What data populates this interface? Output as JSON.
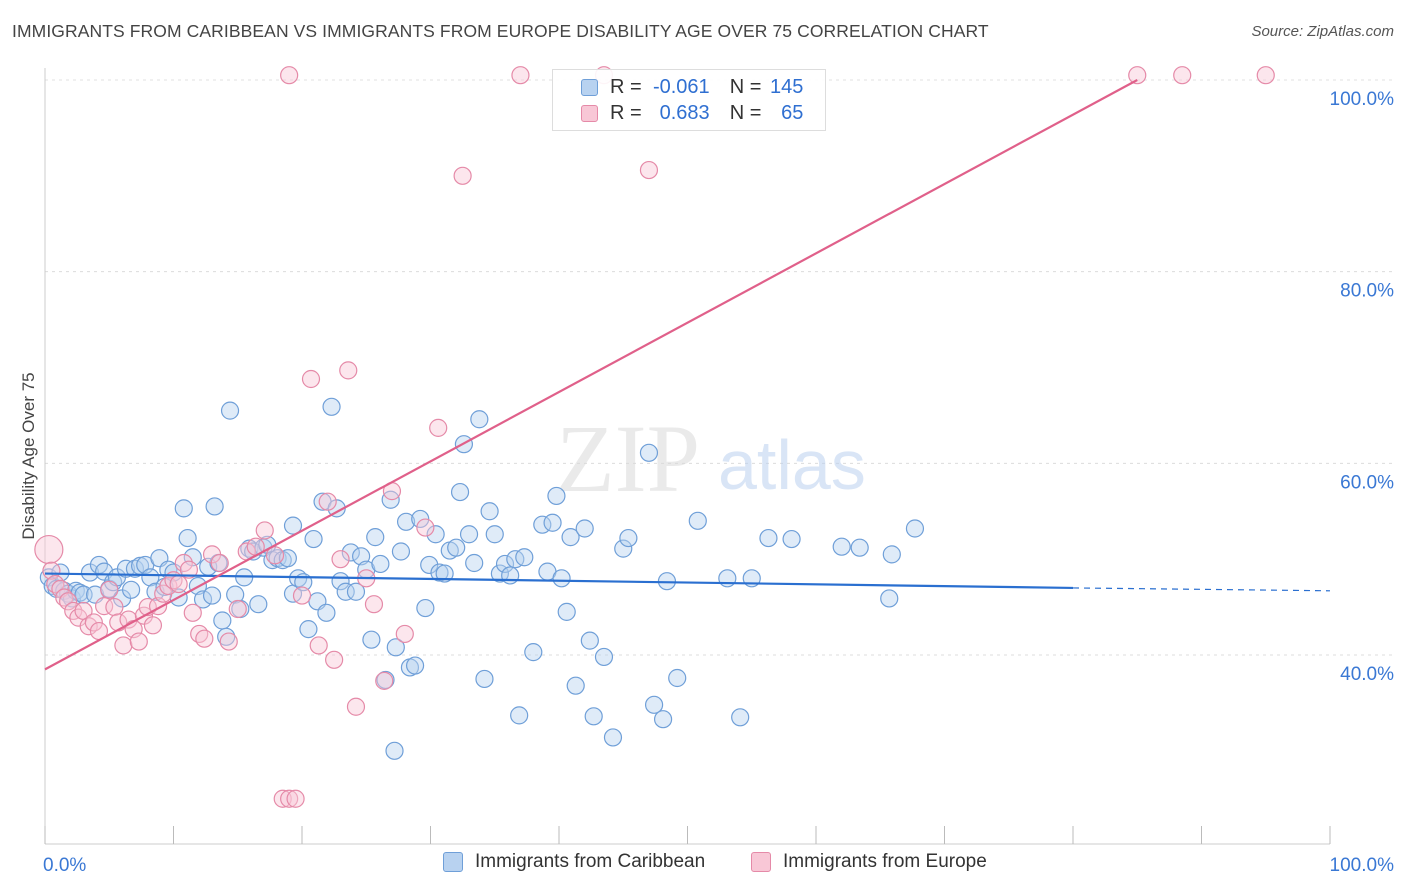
{
  "header": {
    "title": "IMMIGRANTS FROM CARIBBEAN VS IMMIGRANTS FROM EUROPE DISABILITY AGE OVER 75 CORRELATION CHART",
    "source": "Source: ZipAtlas.com"
  },
  "watermark": {
    "zip": "ZIP",
    "atlas": "atlas"
  },
  "legend": {
    "rows": [
      {
        "r_label": "R =",
        "r_value": "-0.061",
        "n_label": "N =",
        "n_value": "145"
      },
      {
        "r_label": "R =",
        "r_value": "0.683",
        "n_label": "N =",
        "n_value": "65"
      }
    ]
  },
  "bottom_legend": {
    "caribbean": "Immigrants from Caribbean",
    "europe": "Immigrants from Europe"
  },
  "colors": {
    "blue_fill": "#b8d2f0",
    "blue_stroke": "#6f9fd8",
    "blue_line": "#2a6fd0",
    "pink_fill": "#f8c7d6",
    "pink_stroke": "#e58aa8",
    "pink_line": "#e0608a",
    "tick_label": "#3a78d4"
  },
  "chart_data": {
    "type": "scatter",
    "title": "IMMIGRANTS FROM CARIBBEAN VS IMMIGRANTS FROM EUROPE DISABILITY AGE OVER 75 CORRELATION CHART",
    "xlabel": "",
    "ylabel": "Disability Age Over 75",
    "xlim": [
      0,
      100
    ],
    "ylim": [
      18,
      102
    ],
    "x_tick_labels": [
      "0.0%",
      "100.0%"
    ],
    "y_ticks": [
      40,
      60,
      80,
      100
    ],
    "y_tick_labels": [
      "40.0%",
      "60.0%",
      "80.0%",
      "100.0%"
    ],
    "grid": "horizontal dashed",
    "legend_position": "top-center",
    "series": [
      {
        "name": "Immigrants from Caribbean",
        "color": "#6f9fd8",
        "trend": {
          "x": [
            0,
            80
          ],
          "y": [
            48.5,
            47.0
          ],
          "dashed_to": [
            100,
            46.7
          ]
        },
        "points": [
          [
            0.3,
            48.1
          ],
          [
            0.6,
            47.2
          ],
          [
            0.9,
            46.9
          ],
          [
            1.2,
            48.6
          ],
          [
            1.5,
            46.7
          ],
          [
            1.8,
            46.4
          ],
          [
            2.1,
            45.9
          ],
          [
            2.4,
            46.7
          ],
          [
            2.7,
            46.5
          ],
          [
            3.0,
            46.3
          ],
          [
            3.5,
            48.6
          ],
          [
            3.9,
            46.3
          ],
          [
            4.2,
            49.4
          ],
          [
            4.6,
            48.7
          ],
          [
            5.0,
            46.9
          ],
          [
            5.3,
            47.6
          ],
          [
            5.6,
            48.1
          ],
          [
            6.0,
            45.9
          ],
          [
            6.3,
            49.0
          ],
          [
            6.7,
            46.8
          ],
          [
            7.0,
            49.0
          ],
          [
            7.4,
            49.3
          ],
          [
            7.8,
            49.4
          ],
          [
            8.2,
            48.1
          ],
          [
            8.6,
            46.6
          ],
          [
            8.9,
            50.1
          ],
          [
            9.3,
            47.1
          ],
          [
            9.6,
            48.9
          ],
          [
            10.0,
            48.6
          ],
          [
            10.4,
            46.0
          ],
          [
            10.8,
            55.3
          ],
          [
            11.1,
            52.2
          ],
          [
            11.5,
            50.2
          ],
          [
            11.9,
            47.2
          ],
          [
            12.3,
            45.8
          ],
          [
            12.7,
            49.2
          ],
          [
            13.0,
            46.2
          ],
          [
            13.2,
            55.5
          ],
          [
            13.5,
            49.6
          ],
          [
            13.8,
            43.6
          ],
          [
            14.1,
            41.9
          ],
          [
            14.4,
            65.5
          ],
          [
            14.8,
            46.3
          ],
          [
            15.2,
            44.8
          ],
          [
            15.5,
            48.1
          ],
          [
            15.9,
            51.1
          ],
          [
            16.2,
            50.8
          ],
          [
            16.6,
            45.3
          ],
          [
            17.0,
            51.2
          ],
          [
            17.3,
            51.5
          ],
          [
            17.7,
            49.9
          ],
          [
            18.1,
            50.1
          ],
          [
            18.5,
            49.9
          ],
          [
            18.9,
            50.1
          ],
          [
            19.3,
            46.4
          ],
          [
            19.3,
            53.5
          ],
          [
            19.7,
            48.0
          ],
          [
            20.1,
            47.6
          ],
          [
            20.5,
            42.7
          ],
          [
            20.9,
            52.1
          ],
          [
            21.2,
            45.6
          ],
          [
            21.6,
            56.0
          ],
          [
            21.9,
            44.4
          ],
          [
            22.3,
            65.9
          ],
          [
            22.7,
            55.3
          ],
          [
            23.0,
            47.7
          ],
          [
            23.4,
            46.6
          ],
          [
            23.8,
            50.7
          ],
          [
            24.2,
            46.6
          ],
          [
            24.6,
            50.3
          ],
          [
            25.0,
            48.9
          ],
          [
            25.4,
            41.6
          ],
          [
            25.7,
            52.3
          ],
          [
            26.1,
            49.5
          ],
          [
            26.5,
            37.4
          ],
          [
            26.9,
            56.2
          ],
          [
            27.3,
            40.8
          ],
          [
            27.2,
            30.0
          ],
          [
            27.7,
            50.8
          ],
          [
            28.1,
            53.9
          ],
          [
            28.4,
            38.7
          ],
          [
            28.8,
            38.9
          ],
          [
            29.2,
            54.2
          ],
          [
            29.6,
            44.9
          ],
          [
            29.9,
            49.4
          ],
          [
            30.4,
            52.6
          ],
          [
            30.7,
            48.6
          ],
          [
            31.1,
            48.5
          ],
          [
            31.5,
            50.9
          ],
          [
            32.0,
            51.2
          ],
          [
            32.3,
            57.0
          ],
          [
            32.6,
            62.0
          ],
          [
            33.0,
            52.6
          ],
          [
            33.4,
            49.6
          ],
          [
            33.8,
            64.6
          ],
          [
            34.2,
            37.5
          ],
          [
            34.6,
            55.0
          ],
          [
            35.0,
            52.6
          ],
          [
            35.4,
            48.5
          ],
          [
            35.8,
            49.5
          ],
          [
            36.2,
            48.3
          ],
          [
            36.6,
            50.0
          ],
          [
            36.9,
            33.7
          ],
          [
            37.3,
            50.2
          ],
          [
            38.0,
            40.3
          ],
          [
            38.7,
            53.6
          ],
          [
            39.1,
            48.7
          ],
          [
            39.5,
            53.8
          ],
          [
            39.8,
            56.6
          ],
          [
            40.2,
            48.0
          ],
          [
            40.6,
            44.5
          ],
          [
            40.9,
            52.3
          ],
          [
            41.3,
            36.8
          ],
          [
            42.0,
            53.2
          ],
          [
            42.4,
            41.5
          ],
          [
            42.7,
            33.6
          ],
          [
            43.5,
            39.8
          ],
          [
            44.2,
            31.4
          ],
          [
            45.0,
            51.1
          ],
          [
            45.4,
            52.2
          ],
          [
            47.4,
            34.8
          ],
          [
            47.0,
            61.1
          ],
          [
            48.1,
            33.3
          ],
          [
            48.4,
            47.7
          ],
          [
            49.2,
            37.6
          ],
          [
            50.8,
            54.0
          ],
          [
            53.1,
            48.0
          ],
          [
            54.1,
            33.5
          ],
          [
            55.0,
            48.0
          ],
          [
            56.3,
            52.2
          ],
          [
            58.1,
            52.1
          ],
          [
            62.0,
            51.3
          ],
          [
            63.4,
            51.2
          ],
          [
            65.7,
            45.9
          ],
          [
            65.9,
            50.5
          ],
          [
            67.7,
            53.2
          ]
        ]
      },
      {
        "name": "Immigrants from Europe",
        "color": "#e58aa8",
        "trend": {
          "x": [
            0,
            85
          ],
          "y": [
            38.5,
            100.0
          ]
        },
        "points": [
          [
            0.3,
            51.0
          ],
          [
            0.5,
            48.8
          ],
          [
            0.8,
            47.4
          ],
          [
            1.2,
            46.9
          ],
          [
            1.5,
            46.0
          ],
          [
            1.8,
            45.6
          ],
          [
            2.2,
            44.6
          ],
          [
            2.6,
            43.9
          ],
          [
            3.0,
            44.6
          ],
          [
            3.4,
            43.0
          ],
          [
            3.8,
            43.4
          ],
          [
            4.2,
            42.5
          ],
          [
            4.6,
            45.1
          ],
          [
            5.0,
            46.8
          ],
          [
            5.4,
            45.0
          ],
          [
            5.7,
            43.4
          ],
          [
            6.1,
            41.0
          ],
          [
            6.5,
            43.7
          ],
          [
            6.9,
            42.7
          ],
          [
            7.3,
            41.4
          ],
          [
            7.7,
            44.1
          ],
          [
            8.0,
            45.0
          ],
          [
            8.4,
            43.1
          ],
          [
            8.8,
            45.1
          ],
          [
            9.2,
            46.4
          ],
          [
            9.6,
            47.2
          ],
          [
            10.0,
            47.8
          ],
          [
            10.4,
            47.4
          ],
          [
            10.8,
            49.6
          ],
          [
            11.2,
            48.9
          ],
          [
            11.5,
            44.4
          ],
          [
            12.0,
            42.2
          ],
          [
            12.4,
            41.7
          ],
          [
            13.0,
            50.5
          ],
          [
            13.6,
            49.6
          ],
          [
            14.3,
            41.4
          ],
          [
            15.0,
            44.8
          ],
          [
            15.7,
            50.8
          ],
          [
            16.4,
            51.3
          ],
          [
            17.1,
            53.0
          ],
          [
            17.9,
            50.4
          ],
          [
            18.5,
            25.0
          ],
          [
            19.0,
            25.0
          ],
          [
            19.5,
            25.0
          ],
          [
            20.0,
            46.2
          ],
          [
            20.7,
            68.8
          ],
          [
            21.3,
            41.0
          ],
          [
            22.0,
            56.0
          ],
          [
            22.5,
            39.5
          ],
          [
            23.0,
            50.0
          ],
          [
            23.6,
            69.7
          ],
          [
            24.2,
            34.6
          ],
          [
            25.0,
            48.0
          ],
          [
            25.6,
            45.3
          ],
          [
            26.4,
            37.3
          ],
          [
            27.0,
            57.1
          ],
          [
            28.0,
            42.2
          ],
          [
            29.6,
            53.3
          ],
          [
            30.6,
            63.7
          ],
          [
            32.5,
            90.0
          ],
          [
            47.0,
            90.6
          ],
          [
            19.0,
            100.5
          ],
          [
            37.0,
            100.5
          ],
          [
            43.5,
            100.5
          ],
          [
            85.0,
            100.5
          ],
          [
            88.5,
            100.5
          ],
          [
            95.0,
            100.5
          ]
        ]
      }
    ]
  }
}
